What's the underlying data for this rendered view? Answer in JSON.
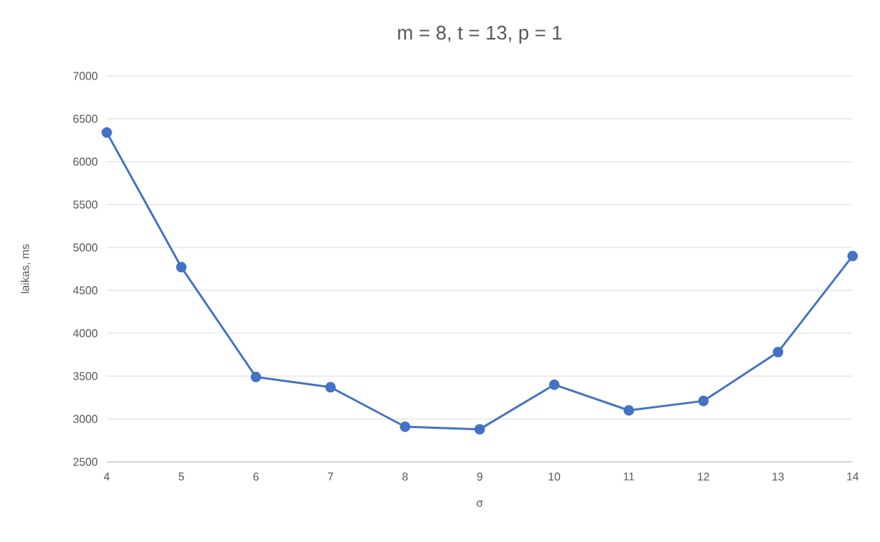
{
  "chart_data": {
    "type": "line",
    "title": "m = 8, t = 13, p = 1",
    "xlabel": "σ",
    "ylabel": "laikas, ms",
    "x": [
      4,
      5,
      6,
      7,
      8,
      9,
      10,
      11,
      12,
      13,
      14
    ],
    "series": [
      {
        "color": "#4472c4",
        "values": [
          6340,
          4770,
          3490,
          3370,
          2910,
          2880,
          3400,
          3100,
          3210,
          3780,
          4900
        ]
      }
    ],
    "xlim": [
      4,
      14
    ],
    "xticks": [
      4,
      5,
      6,
      7,
      8,
      9,
      10,
      11,
      12,
      13,
      14
    ],
    "ylim": [
      2500,
      7000
    ],
    "yticks": [
      2500,
      3000,
      3500,
      4000,
      4500,
      5000,
      5500,
      6000,
      6500,
      7000
    ],
    "grid": "y",
    "marker": "circle",
    "line_style": "solid"
  }
}
